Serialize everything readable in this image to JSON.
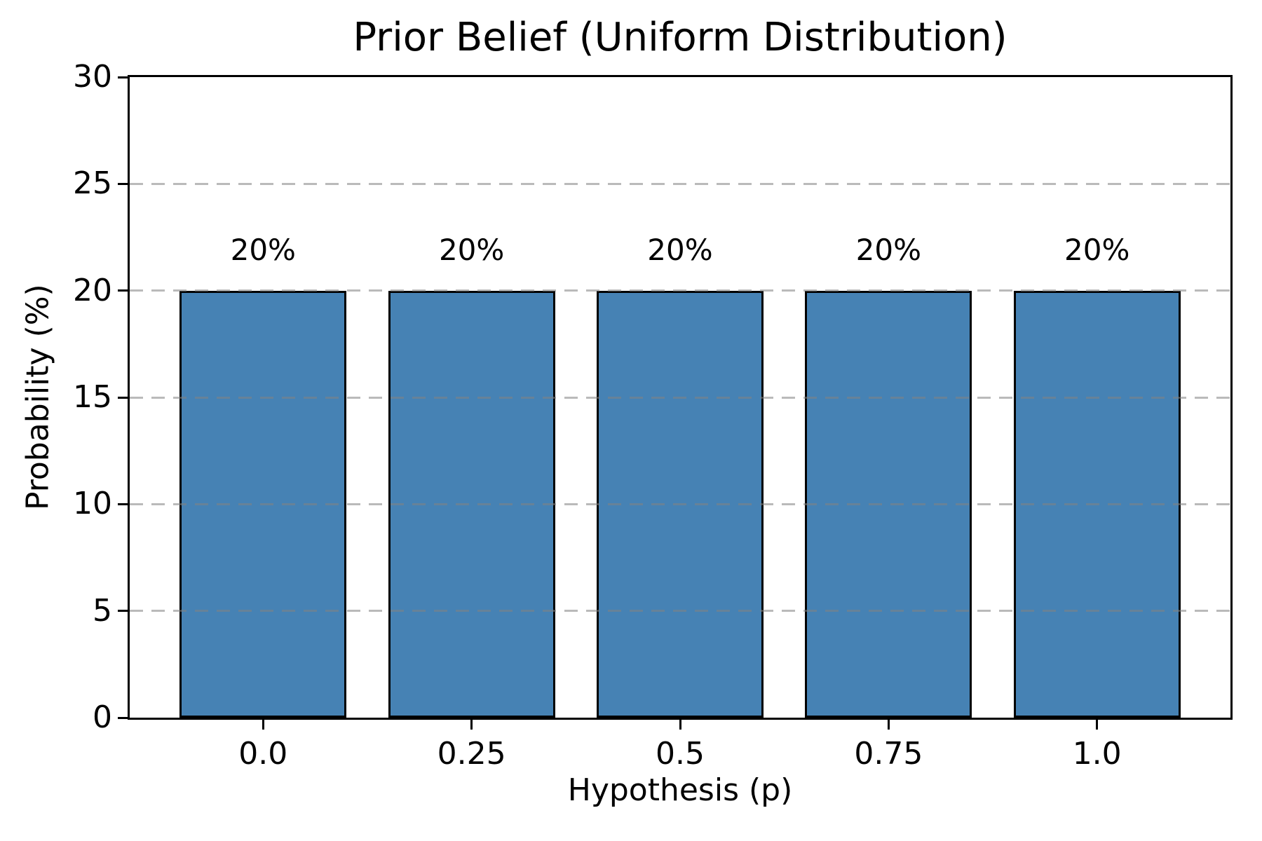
{
  "chart_data": {
    "type": "bar",
    "title": "Prior Belief (Uniform Distribution)",
    "xlabel": "Hypothesis (p)",
    "ylabel": "Probability (%)",
    "categories": [
      "0.0",
      "0.25",
      "0.5",
      "0.75",
      "1.0"
    ],
    "values": [
      20,
      20,
      20,
      20,
      20
    ],
    "bar_labels": [
      "20%",
      "20%",
      "20%",
      "20%",
      "20%"
    ],
    "ylim": [
      0,
      30
    ],
    "yticks": [
      0,
      5,
      10,
      15,
      20,
      25,
      30
    ],
    "gridline_values": [
      5,
      10,
      15,
      20,
      25
    ],
    "grid_style": "dashed",
    "grid_on": true,
    "legend_position": "none",
    "bar_width_fraction": 0.8,
    "colors": {
      "bar_fill": "#4682B4",
      "bar_edge": "#000000",
      "grid": "rgba(130,130,130,0.55)",
      "text": "#000000",
      "background": "#ffffff"
    }
  }
}
